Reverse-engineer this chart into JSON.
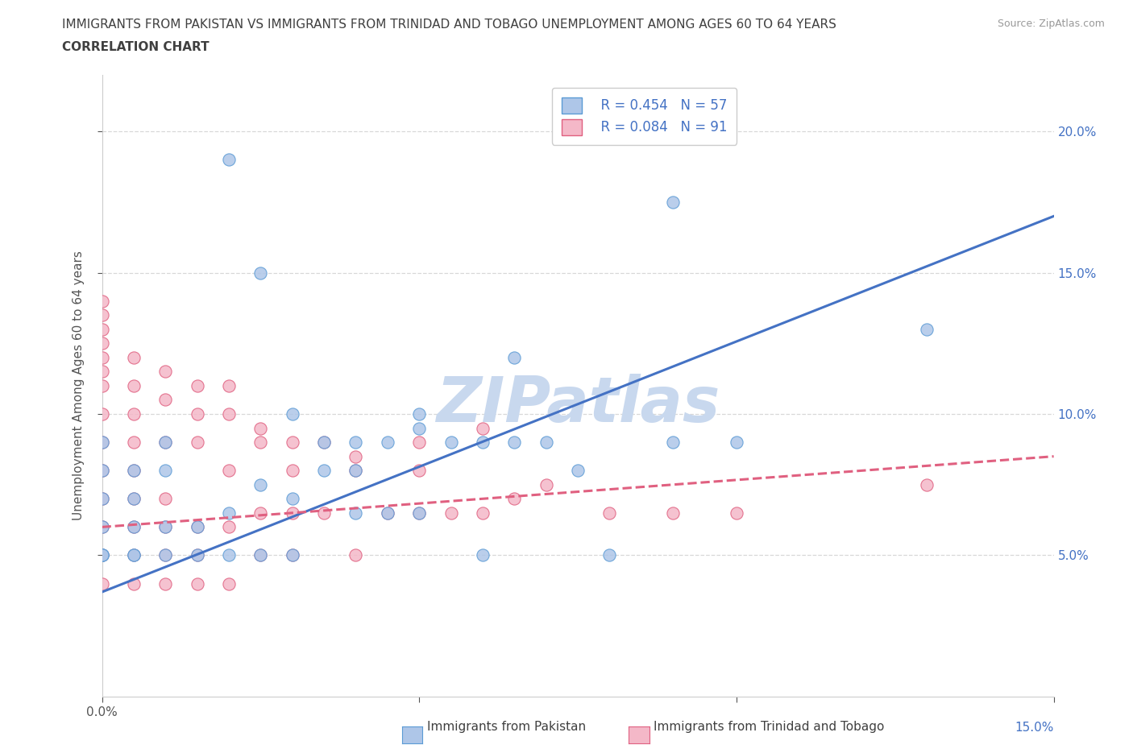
{
  "title_line1": "IMMIGRANTS FROM PAKISTAN VS IMMIGRANTS FROM TRINIDAD AND TOBAGO UNEMPLOYMENT AMONG AGES 60 TO 64 YEARS",
  "title_line2": "CORRELATION CHART",
  "source_text": "Source: ZipAtlas.com",
  "ylabel": "Unemployment Among Ages 60 to 64 years",
  "xlim": [
    0.0,
    0.15
  ],
  "ylim": [
    0.0,
    0.22
  ],
  "xtick_vals": [
    0.0,
    0.05,
    0.1,
    0.15
  ],
  "xtick_labels": [
    "0.0%",
    "",
    "",
    ""
  ],
  "ytick_vals": [
    0.05,
    0.1,
    0.15,
    0.2
  ],
  "ytick_right_labels": [
    "5.0%",
    "10.0%",
    "15.0%",
    "20.0%"
  ],
  "pakistan_color": "#aec6e8",
  "pakistan_edge_color": "#5b9bd5",
  "trinidad_color": "#f4b8c8",
  "trinidad_edge_color": "#e06080",
  "pakistan_line_color": "#4472c4",
  "trinidad_line_color": "#e06080",
  "legend_R_pakistan": "R = 0.454",
  "legend_N_pakistan": "N = 57",
  "legend_R_trinidad": "R = 0.084",
  "legend_N_trinidad": "N = 91",
  "watermark": "ZIPatlas",
  "watermark_color": "#c8d8ee",
  "pakistan_scatter_x": [
    0.0,
    0.0,
    0.0,
    0.0,
    0.0,
    0.0,
    0.0,
    0.005,
    0.005,
    0.005,
    0.005,
    0.005,
    0.01,
    0.01,
    0.01,
    0.01,
    0.015,
    0.015,
    0.02,
    0.02,
    0.025,
    0.025,
    0.03,
    0.03,
    0.035,
    0.04,
    0.04,
    0.045,
    0.05,
    0.05,
    0.06,
    0.065,
    0.075,
    0.08,
    0.09,
    0.1,
    0.13
  ],
  "pakistan_scatter_y": [
    0.05,
    0.05,
    0.05,
    0.06,
    0.07,
    0.08,
    0.09,
    0.05,
    0.05,
    0.06,
    0.07,
    0.08,
    0.05,
    0.06,
    0.08,
    0.09,
    0.05,
    0.06,
    0.05,
    0.065,
    0.05,
    0.075,
    0.05,
    0.07,
    0.08,
    0.065,
    0.08,
    0.065,
    0.065,
    0.095,
    0.05,
    0.12,
    0.08,
    0.05,
    0.09,
    0.09,
    0.13
  ],
  "pakistan_scatter_x2": [
    0.02,
    0.025,
    0.03,
    0.035,
    0.04,
    0.045,
    0.05,
    0.055,
    0.06,
    0.065,
    0.07,
    0.09
  ],
  "pakistan_scatter_y2": [
    0.19,
    0.15,
    0.1,
    0.09,
    0.09,
    0.09,
    0.1,
    0.09,
    0.09,
    0.09,
    0.09,
    0.175
  ],
  "trinidad_scatter_x": [
    0.0,
    0.0,
    0.0,
    0.0,
    0.0,
    0.0,
    0.0,
    0.0,
    0.0,
    0.0,
    0.005,
    0.005,
    0.005,
    0.005,
    0.005,
    0.005,
    0.005,
    0.01,
    0.01,
    0.01,
    0.01,
    0.01,
    0.015,
    0.015,
    0.015,
    0.015,
    0.02,
    0.02,
    0.02,
    0.025,
    0.025,
    0.025,
    0.03,
    0.03,
    0.03,
    0.035,
    0.035,
    0.04,
    0.04,
    0.045,
    0.05,
    0.05,
    0.055,
    0.06,
    0.06,
    0.065,
    0.07,
    0.08,
    0.09,
    0.1,
    0.13
  ],
  "trinidad_scatter_y": [
    0.04,
    0.05,
    0.06,
    0.07,
    0.08,
    0.09,
    0.1,
    0.11,
    0.12,
    0.13,
    0.04,
    0.05,
    0.06,
    0.07,
    0.08,
    0.09,
    0.1,
    0.04,
    0.05,
    0.06,
    0.07,
    0.09,
    0.04,
    0.05,
    0.06,
    0.09,
    0.04,
    0.06,
    0.08,
    0.05,
    0.065,
    0.09,
    0.05,
    0.065,
    0.08,
    0.065,
    0.09,
    0.05,
    0.08,
    0.065,
    0.065,
    0.09,
    0.065,
    0.065,
    0.095,
    0.07,
    0.075,
    0.065,
    0.065,
    0.065,
    0.075
  ],
  "trinidad_scatter_x2": [
    0.0,
    0.0,
    0.0,
    0.0,
    0.005,
    0.005,
    0.01,
    0.01,
    0.015,
    0.015,
    0.02,
    0.02,
    0.025,
    0.03,
    0.04,
    0.05
  ],
  "trinidad_scatter_y2": [
    0.115,
    0.125,
    0.135,
    0.14,
    0.11,
    0.12,
    0.105,
    0.115,
    0.1,
    0.11,
    0.1,
    0.11,
    0.095,
    0.09,
    0.085,
    0.08
  ],
  "pakistan_trend_x": [
    0.0,
    0.15
  ],
  "pakistan_trend_y": [
    0.037,
    0.17
  ],
  "trinidad_trend_x": [
    0.0,
    0.15
  ],
  "trinidad_trend_y": [
    0.06,
    0.085
  ],
  "bg_color": "#ffffff",
  "grid_color": "#d8d8d8",
  "title_color": "#404040",
  "axis_label_color": "#555555",
  "tick_color": "#555555",
  "legend_label_pakistan": "Immigrants from Pakistan",
  "legend_label_trinidad": "Immigrants from Trinidad and Tobago"
}
